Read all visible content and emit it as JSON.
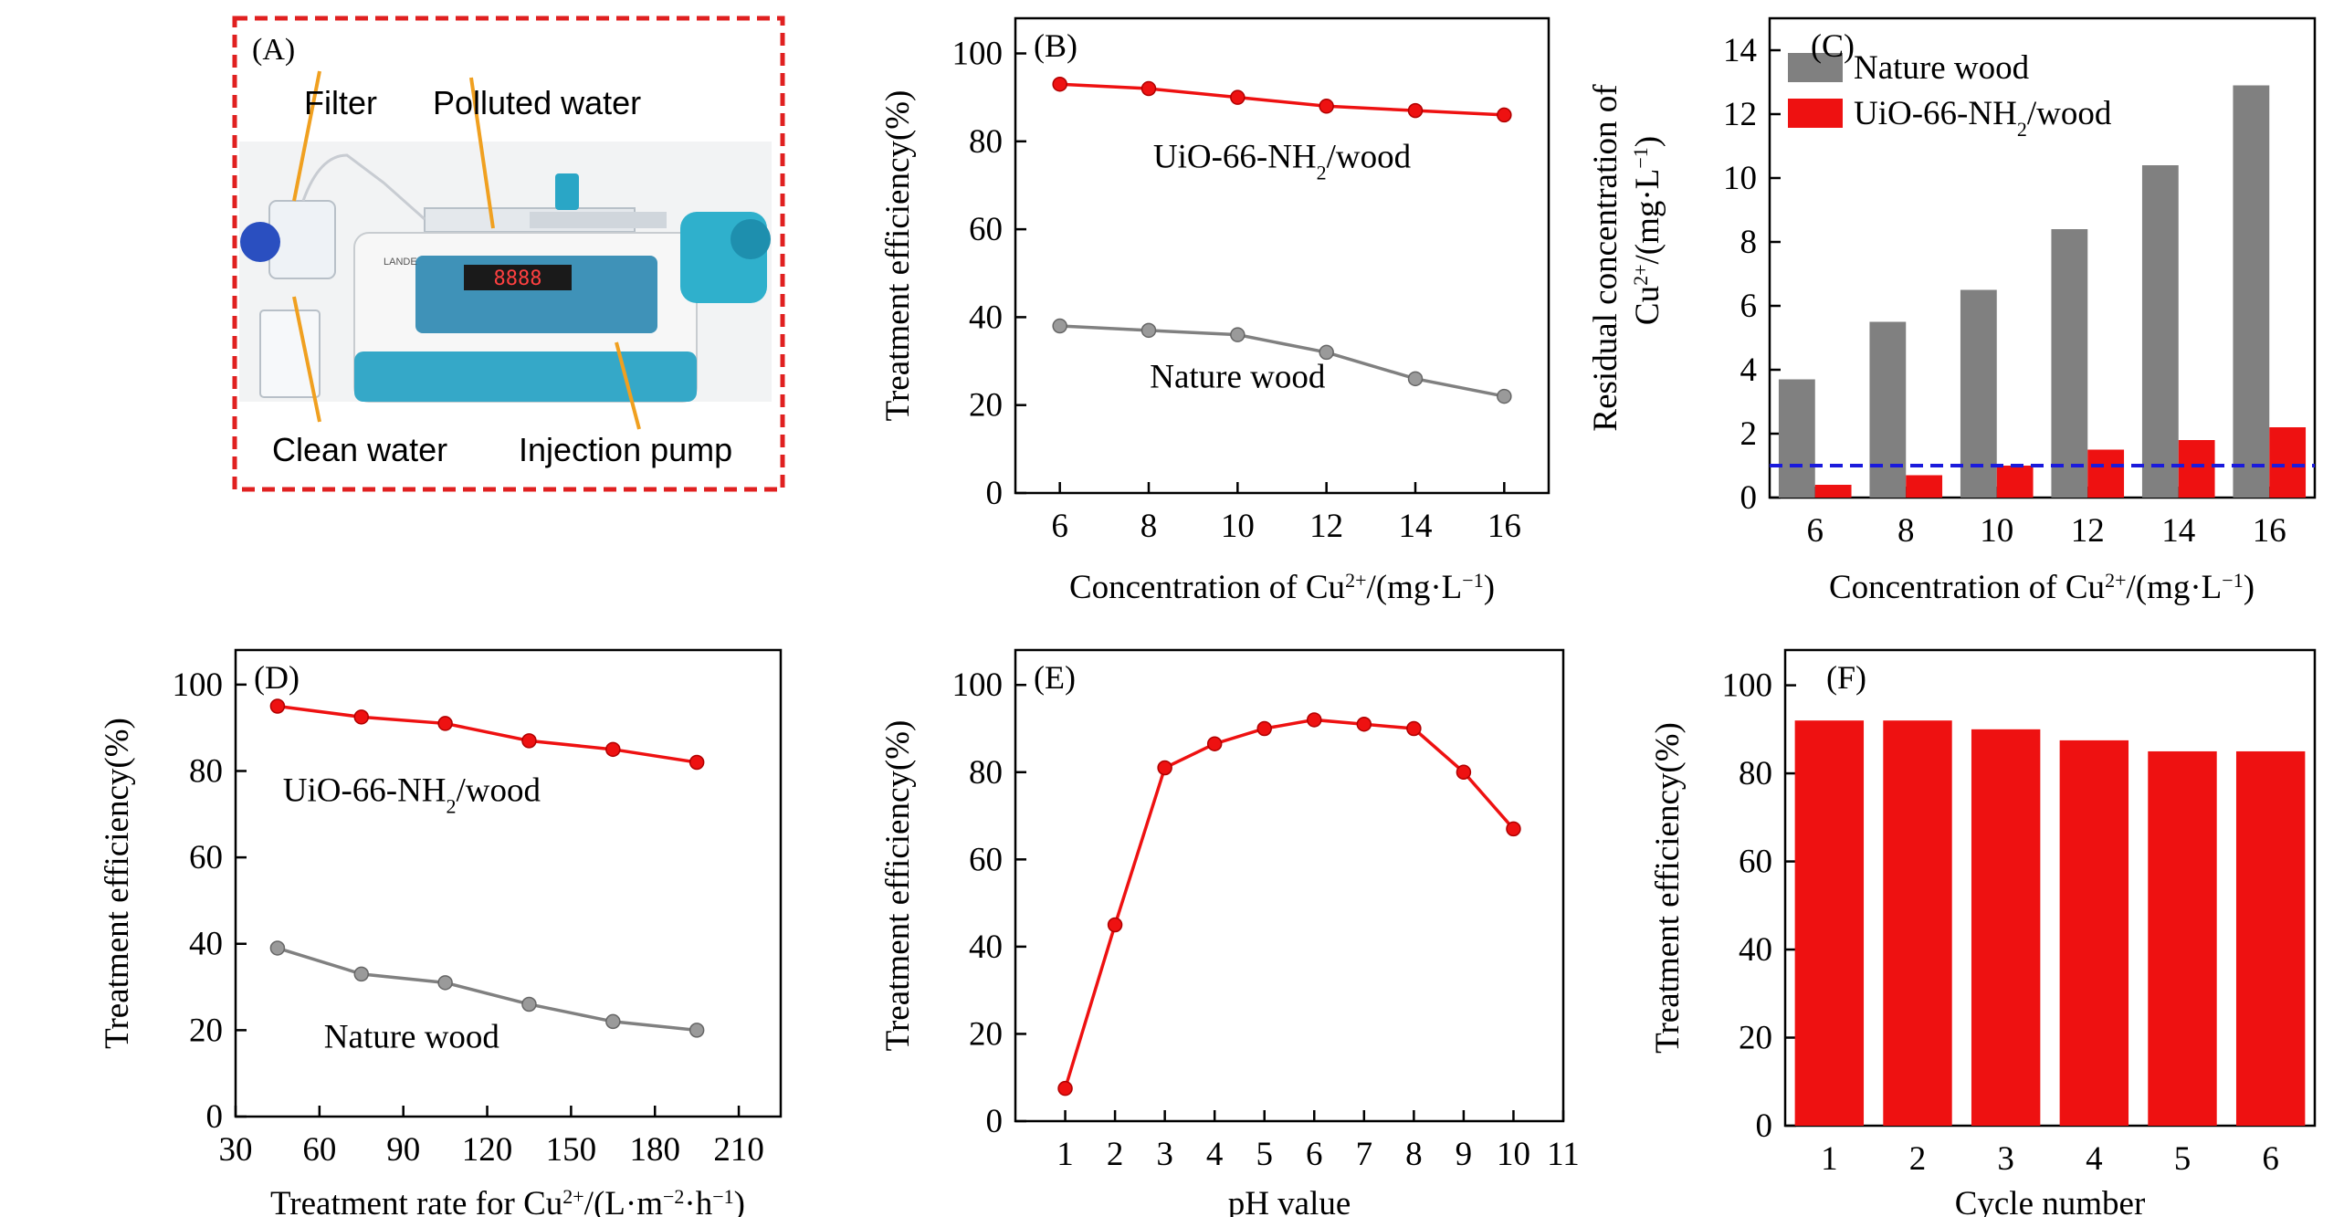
{
  "colors": {
    "red": "#ee1111",
    "gray": "#808080",
    "gray_marker": "#9a9a9a",
    "blue_dash": "#1a1adc",
    "frame_red": "#e02020",
    "arrow_orange": "#f0a020"
  },
  "panel_a": {
    "label": "(A)",
    "filter": "Filter",
    "polluted_water": "Polluted water",
    "clean_water": "Clean water",
    "injection_pump": "Injection pump",
    "pump_display": "8888",
    "pump_brand": "LANDE"
  },
  "chart_data": [
    {
      "id": "B",
      "type": "line",
      "label": "(B)",
      "x": [
        6,
        8,
        10,
        12,
        14,
        16
      ],
      "series": [
        {
          "name": "UiO-66-NH2/wood",
          "color": "red",
          "values": [
            93,
            92,
            90,
            88,
            87,
            86
          ]
        },
        {
          "name": "Nature wood",
          "color": "gray",
          "values": [
            38,
            37,
            36,
            32,
            26,
            22
          ]
        }
      ],
      "annotations": [
        {
          "text_parts": [
            "UiO-66-NH",
            "2",
            "/wood"
          ],
          "x": 11,
          "y": 74
        },
        {
          "text_parts": [
            "Nature wood"
          ],
          "x": 10,
          "y": 24
        }
      ],
      "xlabel_parts": [
        "Concentration of Cu",
        "2+",
        "/(mg·L",
        "−1",
        ")"
      ],
      "ylabel": "Treatment efficiency(%)",
      "xticks": [
        6,
        8,
        10,
        12,
        14,
        16
      ],
      "xlim": [
        5,
        17
      ],
      "yticks": [
        0,
        20,
        40,
        60,
        80,
        100
      ],
      "ylim": [
        0,
        108
      ]
    },
    {
      "id": "C",
      "type": "bar",
      "label": "(C)",
      "categories": [
        "6",
        "8",
        "10",
        "12",
        "14",
        "16"
      ],
      "series": [
        {
          "name": "Nature wood",
          "color": "gray",
          "values": [
            3.7,
            5.5,
            6.5,
            8.4,
            10.4,
            12.9
          ]
        },
        {
          "name": "UiO-66-NH2/wood",
          "name_parts": [
            "UiO-66-NH",
            "2",
            "/wood"
          ],
          "color": "red",
          "values": [
            0.4,
            0.7,
            1.0,
            1.5,
            1.8,
            2.2
          ]
        }
      ],
      "reference_line": {
        "y": 1.0,
        "style": "dashed",
        "color": "blue_dash"
      },
      "xlabel_parts": [
        "Concentration of Cu",
        "2+",
        "/(mg·L",
        "−1",
        ")"
      ],
      "ylabel_line1": "Residual concentration of",
      "ylabel_line2_parts": [
        "Cu",
        "2+",
        "/(mg·L",
        "−1",
        ")"
      ],
      "yticks": [
        0,
        2,
        4,
        6,
        8,
        10,
        12,
        14
      ],
      "ylim": [
        0,
        15
      ],
      "legend": "top-left"
    },
    {
      "id": "D",
      "type": "line",
      "label": "(D)",
      "x": [
        45,
        75,
        105,
        135,
        165,
        195
      ],
      "series": [
        {
          "name": "UiO-66-NH2/wood",
          "color": "red",
          "values": [
            95,
            92.5,
            91,
            87,
            85,
            82
          ]
        },
        {
          "name": "Nature wood",
          "color": "gray",
          "values": [
            39,
            33,
            31,
            26,
            22,
            20
          ]
        }
      ],
      "annotations": [
        {
          "text_parts": [
            "UiO-66-NH",
            "2",
            "/wood"
          ],
          "x": 93,
          "y": 73
        },
        {
          "text_parts": [
            "Nature wood"
          ],
          "x": 93,
          "y": 16
        }
      ],
      "xlabel_parts": [
        "Treatment rate for Cu",
        "2+",
        "/(L·m",
        "−2",
        "·h",
        "−1",
        ")"
      ],
      "ylabel": "Treatment efficiency(%)",
      "xticks": [
        30,
        60,
        90,
        120,
        150,
        180,
        210
      ],
      "xlim": [
        30,
        225
      ],
      "yticks": [
        0,
        20,
        40,
        60,
        80,
        100
      ],
      "ylim": [
        0,
        108
      ]
    },
    {
      "id": "E",
      "type": "line",
      "label": "(E)",
      "x": [
        1,
        2,
        3,
        4,
        5,
        6,
        7,
        8,
        9,
        10
      ],
      "series": [
        {
          "name": "Treatment efficiency",
          "color": "red",
          "values": [
            7.5,
            45,
            81,
            86.5,
            90,
            92,
            91,
            90,
            80,
            67
          ]
        }
      ],
      "xlabel_parts": [
        "pH value"
      ],
      "ylabel": "Treatment efficiency(%)",
      "xticks": [
        1,
        2,
        3,
        4,
        5,
        6,
        7,
        8,
        9,
        10,
        11
      ],
      "xlim": [
        0,
        11
      ],
      "yticks": [
        0,
        20,
        40,
        60,
        80,
        100
      ],
      "ylim": [
        0,
        108
      ]
    },
    {
      "id": "F",
      "type": "bar",
      "label": "(F)",
      "categories": [
        "1",
        "2",
        "3",
        "4",
        "5",
        "6"
      ],
      "series": [
        {
          "name": "Treatment efficiency",
          "color": "red",
          "values": [
            92,
            92,
            90,
            87.5,
            85,
            85
          ]
        }
      ],
      "xlabel_parts": [
        "Cycle number"
      ],
      "ylabel": "Treatment efficiency(%)",
      "yticks": [
        0,
        20,
        40,
        60,
        80,
        100
      ],
      "ylim": [
        0,
        108
      ]
    }
  ]
}
